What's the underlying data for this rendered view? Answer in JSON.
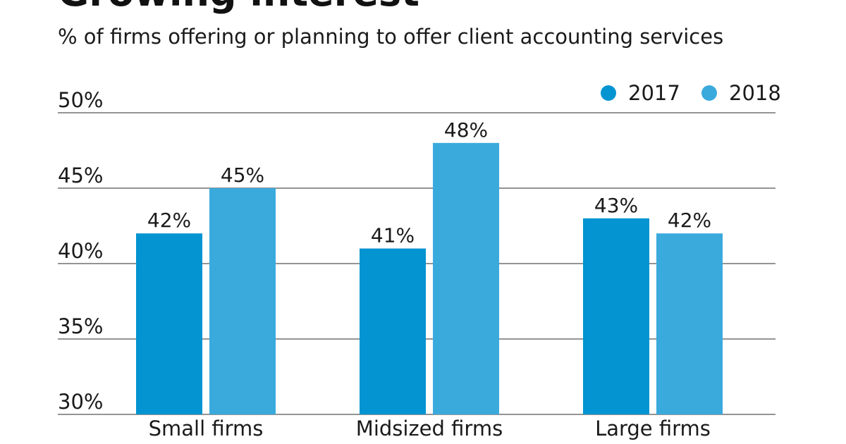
{
  "chart_data": {
    "type": "bar",
    "title": "Growing interest",
    "subtitle": "% of firms offering or planning to offer client accounting services",
    "categories": [
      "Small firms",
      "Midsized firms",
      "Large firms"
    ],
    "series": [
      {
        "name": "2017",
        "values": [
          42,
          41,
          43
        ],
        "color": "#0394d1"
      },
      {
        "name": "2018",
        "values": [
          45,
          48,
          42
        ],
        "color": "#3aaadd"
      }
    ],
    "value_suffix": "%",
    "ylim": [
      30,
      50
    ],
    "yticks": [
      30,
      35,
      40,
      45,
      50
    ],
    "grid": true,
    "legend": "top-right",
    "xlabel": "",
    "ylabel": ""
  }
}
